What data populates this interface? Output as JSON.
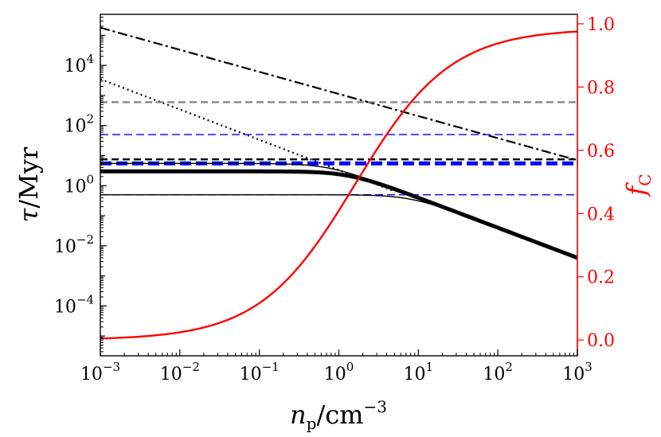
{
  "chart_data": {
    "type": "line",
    "x_axis": {
      "label": "n_p/cm^-3",
      "label_base": "n",
      "label_sub": "p",
      "label_unit": "/cm",
      "label_sup": "−3",
      "scale": "log",
      "lim": [
        0.001,
        1000
      ],
      "ticks": [
        {
          "value": 0.001,
          "base": "10",
          "exp": "−3"
        },
        {
          "value": 0.01,
          "base": "10",
          "exp": "−2"
        },
        {
          "value": 0.1,
          "base": "10",
          "exp": "−1"
        },
        {
          "value": 1,
          "base": "10",
          "exp": "0"
        },
        {
          "value": 10,
          "base": "10",
          "exp": "1"
        },
        {
          "value": 100,
          "base": "10",
          "exp": "2"
        },
        {
          "value": 1000,
          "base": "10",
          "exp": "3"
        }
      ]
    },
    "y_axis_left": {
      "label": "τ/Myr",
      "label_main": "τ",
      "label_unit": "/Myr",
      "scale": "log",
      "lim": [
        2.2e-06,
        500000
      ],
      "ticks": [
        {
          "value": 0.0001,
          "base": "10",
          "exp": "−4"
        },
        {
          "value": 0.01,
          "base": "10",
          "exp": "−2"
        },
        {
          "value": 1,
          "base": "10",
          "exp": "0"
        },
        {
          "value": 100,
          "base": "10",
          "exp": "2"
        },
        {
          "value": 10000,
          "base": "10",
          "exp": "4"
        }
      ]
    },
    "y_axis_right": {
      "label": "f_C",
      "label_main": "f",
      "label_sub": "C",
      "scale": "linear",
      "lim": [
        -0.05,
        1.03
      ],
      "ticks": [
        "0.0",
        "0.2",
        "0.4",
        "0.6",
        "0.8",
        "1.0"
      ],
      "tick_values": [
        0,
        0.2,
        0.4,
        0.6,
        0.8,
        1.0
      ],
      "color": "#ff0000"
    },
    "series": [
      {
        "name": "dash-dot black",
        "axis": "left",
        "color": "#000000",
        "style": "dashdot",
        "width": 2.2,
        "kind": "powerlaw",
        "x0": 0.001,
        "y0": 180000,
        "x1": 1000,
        "y1": 7
      },
      {
        "name": "dotted black",
        "axis": "left",
        "color": "#000000",
        "style": "dotted",
        "width": 2.2,
        "kind": "powerlaw",
        "x0": 0.001,
        "y0": 3500,
        "x1": 5,
        "y1": 0.65
      },
      {
        "name": "grey dashed horizontal",
        "axis": "left",
        "color": "#808080",
        "style": "dashed",
        "width": 2.2,
        "kind": "hline",
        "y": 600
      },
      {
        "name": "blue thin dashed upper",
        "axis": "left",
        "color": "#0000ff",
        "style": "dashed-thin",
        "width": 1.4,
        "kind": "hline",
        "y": 50
      },
      {
        "name": "black dashed horizontal",
        "axis": "left",
        "color": "#000000",
        "style": "dashed",
        "width": 2.4,
        "kind": "hline",
        "y": 7.5
      },
      {
        "name": "blue thick dashed",
        "axis": "left",
        "color": "#0000ff",
        "style": "dashed-thick",
        "width": 5,
        "kind": "hline",
        "y": 5.5
      },
      {
        "name": "blue thin dashed lower",
        "axis": "left",
        "color": "#0000ff",
        "style": "dashed-thin",
        "width": 1.4,
        "kind": "hline",
        "y": 0.5
      },
      {
        "name": "thick solid black",
        "axis": "left",
        "color": "#000000",
        "style": "solid",
        "width": 5,
        "kind": "saturating",
        "y_flat": 3.0,
        "y_ref": 0.004,
        "x_ref": 1000,
        "sharpness": 2
      },
      {
        "name": "thin solid black upper",
        "axis": "left",
        "color": "#000000",
        "style": "solid",
        "width": 1.4,
        "kind": "saturating",
        "y_flat": 5.5,
        "y_ref": 0.004,
        "x_ref": 1000,
        "sharpness": 2
      },
      {
        "name": "thin solid black lower",
        "axis": "left",
        "color": "#000000",
        "style": "solid",
        "width": 1.4,
        "kind": "saturating",
        "y_flat": 0.5,
        "y_ref": 0.004,
        "x_ref": 1000,
        "sharpness": 2
      },
      {
        "name": "f_C red curve",
        "axis": "right",
        "color": "#ff0000",
        "style": "solid",
        "width": 2.4,
        "kind": "sigmoid",
        "center": 1.6,
        "slope": 1.2,
        "fmin": 0.0,
        "fmax": 0.985
      }
    ]
  }
}
